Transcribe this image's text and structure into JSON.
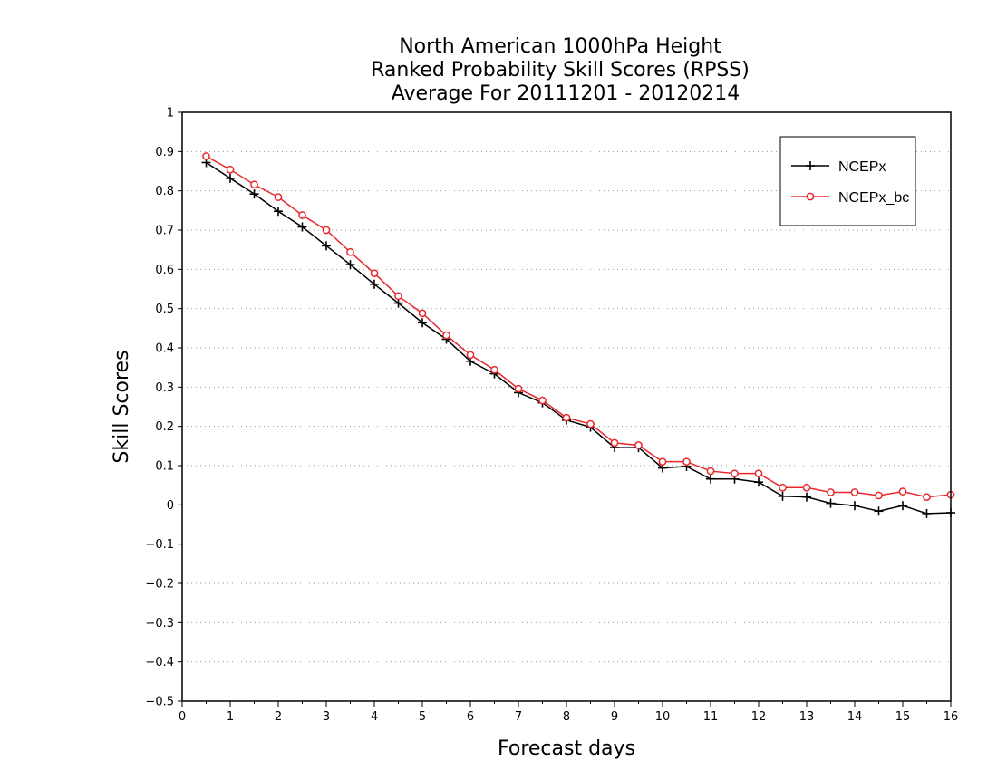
{
  "chart_data": {
    "type": "line",
    "title_lines": [
      "North American 1000hPa Height",
      "Ranked Probability Skill Scores (RPSS)",
      "Average For 20111201 - 20120214"
    ],
    "xlabel": "Forecast days",
    "ylabel": "Skill Scores",
    "xlim": [
      0,
      16
    ],
    "ylim": [
      -0.5,
      1
    ],
    "x_ticks": [
      "0",
      "1",
      "2",
      "3",
      "4",
      "5",
      "6",
      "7",
      "8",
      "9",
      "10",
      "11",
      "12",
      "13",
      "14",
      "15",
      "16"
    ],
    "y_ticks": [
      "1",
      "0.9",
      "0.8",
      "0.7",
      "0.6",
      "0.5",
      "0.4",
      "0.3",
      "0.2",
      "0.1",
      "0",
      "−0.1",
      "−0.2",
      "−0.3",
      "−0.4",
      "−0.5"
    ],
    "y_tick_values": [
      1,
      0.9,
      0.8,
      0.7,
      0.6,
      0.5,
      0.4,
      0.3,
      0.2,
      0.1,
      0,
      -0.1,
      -0.2,
      -0.3,
      -0.4,
      -0.5
    ],
    "grid": "horizontal-dotted",
    "legend_position": "top-right",
    "x": [
      0.5,
      1,
      1.5,
      2,
      2.5,
      3,
      3.5,
      4,
      4.5,
      5,
      5.5,
      6,
      6.5,
      7,
      7.5,
      8,
      8.5,
      9,
      9.5,
      10,
      10.5,
      11,
      11.5,
      12,
      12.5,
      13,
      13.5,
      14,
      14.5,
      15,
      15.5,
      16
    ],
    "series": [
      {
        "name": "NCEPx",
        "color": "#000000",
        "marker": "plus",
        "values": [
          0.872,
          0.832,
          0.792,
          0.748,
          0.708,
          0.66,
          0.612,
          0.562,
          0.514,
          0.464,
          0.422,
          0.366,
          0.334,
          0.286,
          0.26,
          0.216,
          0.198,
          0.146,
          0.146,
          0.094,
          0.098,
          0.066,
          0.066,
          0.058,
          0.022,
          0.02,
          0.004,
          -0.002,
          -0.016,
          -0.002,
          -0.022,
          -0.02
        ]
      },
      {
        "name": "NCEPx_bc",
        "color": "#e8282c",
        "marker": "circle",
        "values": [
          0.888,
          0.854,
          0.816,
          0.784,
          0.738,
          0.7,
          0.644,
          0.59,
          0.532,
          0.488,
          0.432,
          0.382,
          0.344,
          0.296,
          0.266,
          0.222,
          0.206,
          0.158,
          0.152,
          0.11,
          0.11,
          0.086,
          0.08,
          0.08,
          0.044,
          0.044,
          0.032,
          0.032,
          0.024,
          0.034,
          0.02,
          0.026
        ]
      }
    ]
  }
}
